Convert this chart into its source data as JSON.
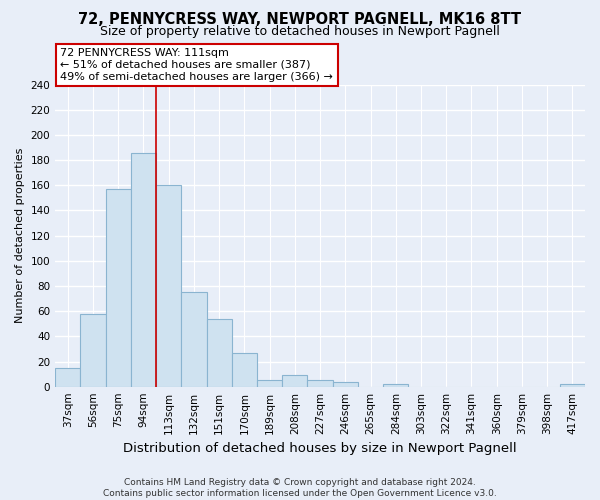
{
  "title": "72, PENNYCRESS WAY, NEWPORT PAGNELL, MK16 8TT",
  "subtitle": "Size of property relative to detached houses in Newport Pagnell",
  "xlabel": "Distribution of detached houses by size in Newport Pagnell",
  "ylabel": "Number of detached properties",
  "bar_values": [
    15,
    58,
    157,
    186,
    160,
    75,
    54,
    27,
    5,
    9,
    5,
    4,
    0,
    2,
    0,
    0,
    0,
    0,
    0,
    0,
    2
  ],
  "bin_labels": [
    "37sqm",
    "56sqm",
    "75sqm",
    "94sqm",
    "113sqm",
    "132sqm",
    "151sqm",
    "170sqm",
    "189sqm",
    "208sqm",
    "227sqm",
    "246sqm",
    "265sqm",
    "284sqm",
    "303sqm",
    "322sqm",
    "341sqm",
    "360sqm",
    "379sqm",
    "398sqm",
    "417sqm"
  ],
  "bar_color": "#cfe2f0",
  "bar_edge_color": "#8ab4d0",
  "vline_color": "#cc0000",
  "annotation_text": "72 PENNYCRESS WAY: 111sqm\n← 51% of detached houses are smaller (387)\n49% of semi-detached houses are larger (366) →",
  "annotation_box_color": "white",
  "annotation_box_edge": "#cc0000",
  "ylim": [
    0,
    240
  ],
  "yticks": [
    0,
    20,
    40,
    60,
    80,
    100,
    120,
    140,
    160,
    180,
    200,
    220,
    240
  ],
  "footer": "Contains HM Land Registry data © Crown copyright and database right 2024.\nContains public sector information licensed under the Open Government Licence v3.0.",
  "bg_color": "#e8eef8",
  "grid_color": "white",
  "title_fontsize": 10.5,
  "subtitle_fontsize": 9,
  "xlabel_fontsize": 9.5,
  "ylabel_fontsize": 8,
  "tick_fontsize": 7.5,
  "annotation_fontsize": 8,
  "footer_fontsize": 6.5
}
